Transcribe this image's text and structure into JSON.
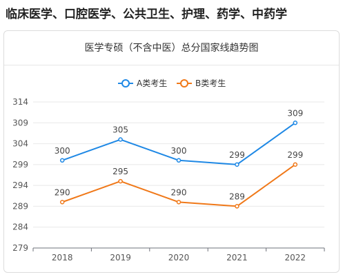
{
  "page": {
    "heading": "临床医学、口腔医学、公共卫生、护理、药学、中药学"
  },
  "chart_data": {
    "type": "line",
    "title": "医学专硕（不含中医）总分国家线趋势图",
    "categories": [
      "2018",
      "2019",
      "2020",
      "2021",
      "2022"
    ],
    "series": [
      {
        "name": "A类考生",
        "color": "#1e88e5",
        "values": [
          300,
          305,
          300,
          299,
          309
        ]
      },
      {
        "name": "B类考生",
        "color": "#f07818",
        "values": [
          290,
          295,
          290,
          289,
          299
        ]
      }
    ],
    "yticks": [
      279,
      284,
      289,
      294,
      299,
      304,
      309,
      314
    ],
    "ylim": [
      279,
      314
    ],
    "grid": true,
    "legend": "top-center",
    "data_labels": true
  }
}
